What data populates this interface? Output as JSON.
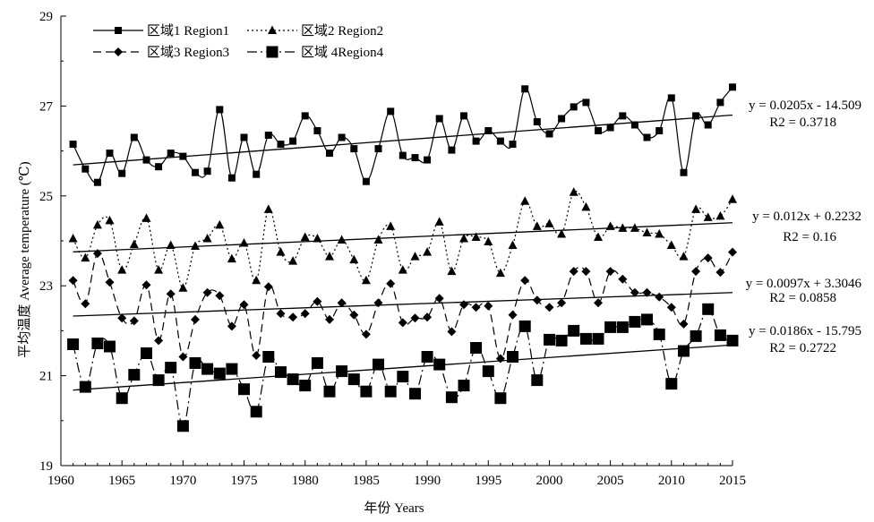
{
  "chart_data": {
    "type": "line",
    "xlabel": "年份 Years",
    "ylabel": "平均温度 Average temperature (℃)",
    "xlim": [
      1960,
      2015
    ],
    "ylim": [
      19,
      29
    ],
    "x_ticks": [
      "1960",
      "1965",
      "1970",
      "1975",
      "1980",
      "1985",
      "1990",
      "1995",
      "2000",
      "2005",
      "2010",
      "2015"
    ],
    "y_ticks": [
      "19",
      "21",
      "23",
      "25",
      "27",
      "29"
    ],
    "legend_position": "top-left",
    "x": [
      1961,
      1962,
      1963,
      1964,
      1965,
      1966,
      1967,
      1968,
      1969,
      1970,
      1971,
      1972,
      1973,
      1974,
      1975,
      1976,
      1977,
      1978,
      1979,
      1980,
      1981,
      1982,
      1983,
      1984,
      1985,
      1986,
      1987,
      1988,
      1989,
      1990,
      1991,
      1992,
      1993,
      1994,
      1995,
      1996,
      1997,
      1998,
      1999,
      2000,
      2001,
      2002,
      2003,
      2004,
      2005,
      2006,
      2007,
      2008,
      2009,
      2010,
      2011,
      2012,
      2013,
      2014,
      2015
    ],
    "series": [
      {
        "name": "区域1 Region1",
        "marker": "small-square",
        "line_style": "solid",
        "trend": {
          "slope": 0.0205,
          "intercept": -14.509
        },
        "equation": "y = 0.0205x - 14.509",
        "r2": "R2 = 0.3718",
        "values": [
          26.15,
          25.6,
          25.3,
          25.95,
          25.5,
          26.3,
          25.8,
          25.65,
          25.95,
          25.88,
          25.52,
          25.55,
          26.92,
          25.4,
          26.3,
          25.48,
          26.35,
          26.15,
          26.22,
          26.78,
          26.45,
          25.95,
          26.3,
          26.05,
          25.32,
          26.05,
          26.88,
          25.9,
          25.85,
          25.8,
          26.72,
          26.02,
          26.78,
          26.22,
          26.45,
          26.22,
          26.15,
          27.38,
          26.65,
          26.38,
          26.72,
          26.98,
          27.08,
          26.45,
          26.52,
          26.78,
          26.58,
          26.3,
          26.45,
          27.18,
          25.52,
          26.78,
          26.58,
          27.08,
          27.42
        ]
      },
      {
        "name": "区域2 Region2",
        "marker": "triangle",
        "line_style": "dotted",
        "trend": {
          "slope": 0.012,
          "intercept": 0.2232
        },
        "equation": "y = 0.012x + 0.2232",
        "r2": "R2 = 0.16",
        "values": [
          24.05,
          23.62,
          24.35,
          24.45,
          23.35,
          23.92,
          24.5,
          23.35,
          23.9,
          22.95,
          23.88,
          24.05,
          24.35,
          23.6,
          23.95,
          23.12,
          24.7,
          23.75,
          23.55,
          24.08,
          24.05,
          23.65,
          24.02,
          23.58,
          23.12,
          24.02,
          24.32,
          23.35,
          23.65,
          23.75,
          24.42,
          23.32,
          24.05,
          24.08,
          23.98,
          23.28,
          23.9,
          24.88,
          24.32,
          24.38,
          24.15,
          25.08,
          24.75,
          24.08,
          24.32,
          24.28,
          24.28,
          24.18,
          24.15,
          23.9,
          23.65,
          24.7,
          24.52,
          24.55,
          24.92
        ]
      },
      {
        "name": "区域3 Region3",
        "marker": "diamond",
        "line_style": "dashed",
        "trend": {
          "slope": 0.0097,
          "intercept": 3.3046
        },
        "equation": "y = 0.0097x + 3.3046",
        "r2": "R2 = 0.0858",
        "values": [
          23.12,
          22.6,
          23.72,
          23.08,
          22.28,
          22.22,
          23.02,
          21.78,
          22.82,
          21.42,
          22.25,
          22.85,
          22.78,
          22.1,
          22.58,
          21.45,
          22.98,
          22.38,
          22.3,
          22.38,
          22.65,
          22.25,
          22.62,
          22.35,
          21.92,
          22.62,
          23.05,
          22.18,
          22.28,
          22.3,
          22.72,
          21.98,
          22.58,
          22.52,
          22.55,
          21.38,
          22.35,
          23.12,
          22.68,
          22.52,
          22.62,
          23.32,
          23.32,
          22.62,
          23.32,
          23.15,
          22.85,
          22.85,
          22.75,
          22.52,
          22.15,
          23.32,
          23.62,
          23.3,
          23.75
        ]
      },
      {
        "name": "区域 4Region4",
        "marker": "large-square",
        "line_style": "dash-dot",
        "trend": {
          "slope": 0.0186,
          "intercept": -15.795
        },
        "equation": "y = 0.0186x - 15.795",
        "r2": "R2 = 0.2722",
        "values": [
          21.7,
          20.75,
          21.72,
          21.65,
          20.5,
          21.02,
          21.5,
          20.9,
          21.18,
          19.88,
          21.28,
          21.15,
          21.05,
          21.15,
          20.7,
          20.2,
          21.42,
          21.08,
          20.92,
          20.78,
          21.28,
          20.65,
          21.1,
          20.92,
          20.65,
          21.25,
          20.65,
          20.98,
          20.6,
          21.42,
          21.25,
          20.52,
          20.78,
          21.62,
          21.1,
          20.5,
          21.42,
          22.1,
          20.9,
          21.8,
          21.78,
          22.0,
          21.82,
          21.82,
          22.08,
          22.08,
          22.2,
          22.25,
          21.92,
          20.82,
          21.55,
          21.88,
          22.48,
          21.9,
          21.78
        ]
      }
    ]
  }
}
